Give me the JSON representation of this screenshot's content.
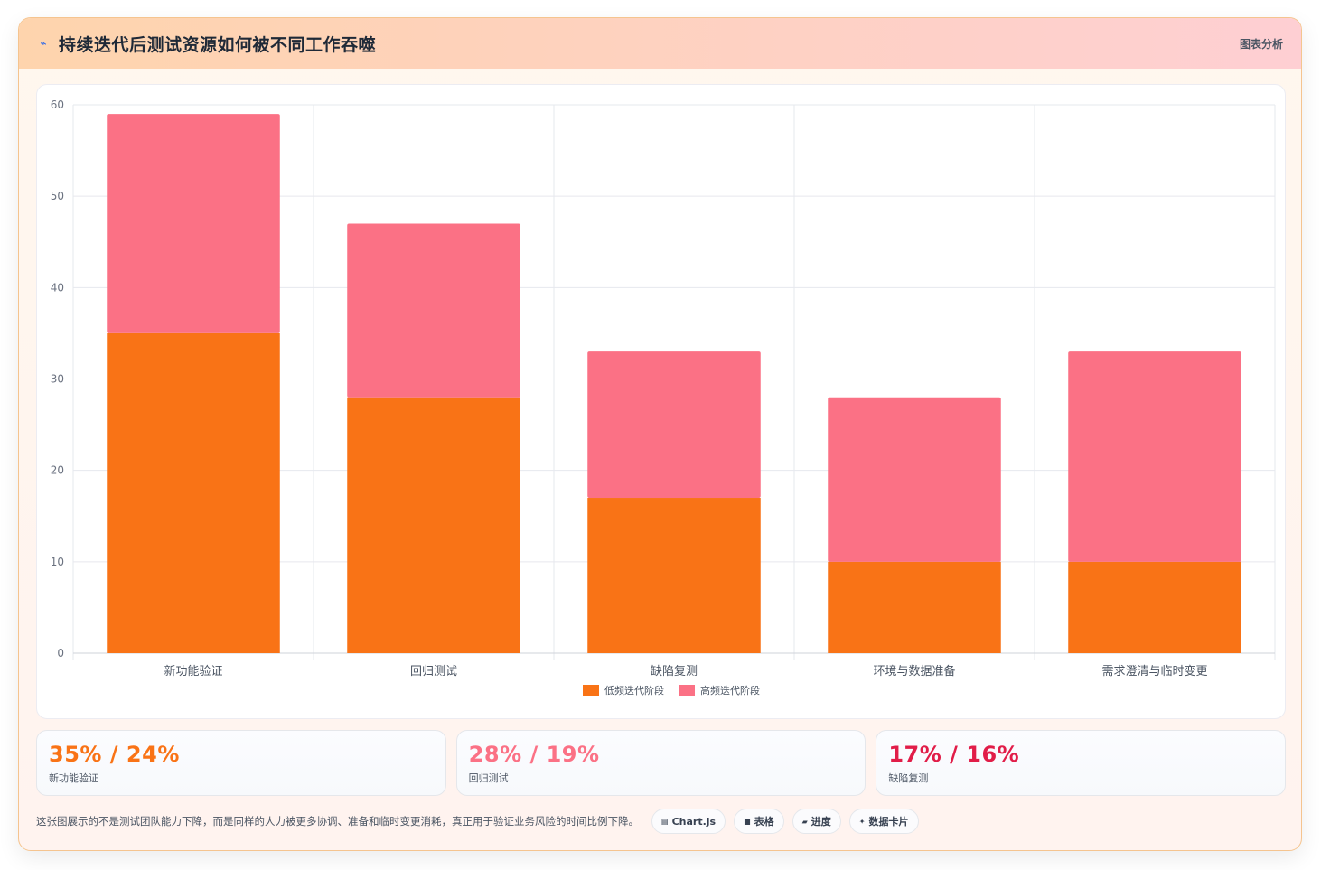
{
  "header": {
    "title": "持续迭代后测试资源如何被不同工作吞噬",
    "title_icon": "trend-icon",
    "link_label": "图表分析"
  },
  "chart_data": {
    "type": "bar",
    "stacked": true,
    "categories": [
      "新功能验证",
      "回归测试",
      "缺陷复测",
      "环境与数据准备",
      "需求澄清与临时变更"
    ],
    "series": [
      {
        "name": "低频迭代阶段",
        "color": "#f97316",
        "values": [
          35,
          28,
          17,
          10,
          10
        ]
      },
      {
        "name": "高频迭代阶段",
        "color": "#fb7185",
        "values": [
          24,
          19,
          16,
          18,
          23
        ]
      }
    ],
    "ylim": [
      0,
      60
    ],
    "yticks": [
      0,
      10,
      20,
      30,
      40,
      50,
      60
    ],
    "grid": true,
    "legend_position": "bottom"
  },
  "stats": [
    {
      "value": "35% / 24%",
      "label": "新功能验证",
      "color": "#f97316"
    },
    {
      "value": "28% / 19%",
      "label": "回归测试",
      "color": "#fb7185"
    },
    {
      "value": "17% / 16%",
      "label": "缺陷复测",
      "color": "#e11d48"
    }
  ],
  "footer": {
    "note": "这张图展示的不是测试团队能力下降，而是同样的人力被更多协调、准备和临时变更消耗，真正用于验证业务风险的时间比例下降。",
    "chips": [
      {
        "icon": "chart-icon",
        "label": "Chart.js"
      },
      {
        "icon": "table-icon",
        "label": "表格"
      },
      {
        "icon": "progress-icon",
        "label": "进度"
      },
      {
        "icon": "sparkle-icon",
        "label": "数据卡片"
      }
    ]
  }
}
